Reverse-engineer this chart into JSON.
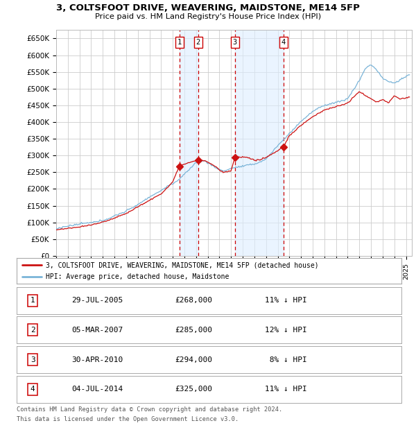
{
  "title": "3, COLTSFOOT DRIVE, WEAVERING, MAIDSTONE, ME14 5FP",
  "subtitle": "Price paid vs. HM Land Registry's House Price Index (HPI)",
  "ylabel_ticks": [
    "£0",
    "£50K",
    "£100K",
    "£150K",
    "£200K",
    "£250K",
    "£300K",
    "£350K",
    "£400K",
    "£450K",
    "£500K",
    "£550K",
    "£600K",
    "£650K"
  ],
  "ytick_values": [
    0,
    50000,
    100000,
    150000,
    200000,
    250000,
    300000,
    350000,
    400000,
    450000,
    500000,
    550000,
    600000,
    650000
  ],
  "hpi_color": "#7ab4d8",
  "price_color": "#cc1111",
  "shade_color": "#ddeeff",
  "sales": [
    {
      "num": 1,
      "date_num": 2005.57,
      "price": 268000,
      "label": "29-JUL-2005",
      "pct": "11%"
    },
    {
      "num": 2,
      "date_num": 2007.17,
      "price": 285000,
      "label": "05-MAR-2007",
      "pct": "12%"
    },
    {
      "num": 3,
      "date_num": 2010.33,
      "price": 294000,
      "label": "30-APR-2010",
      "pct": "8%"
    },
    {
      "num": 4,
      "date_num": 2014.5,
      "price": 325000,
      "label": "04-JUL-2014",
      "pct": "11%"
    }
  ],
  "xmin": 1995.0,
  "xmax": 2025.5,
  "legend_address": "3, COLTSFOOT DRIVE, WEAVERING, MAIDSTONE, ME14 5FP (detached house)",
  "legend_hpi": "HPI: Average price, detached house, Maidstone",
  "footer1": "Contains HM Land Registry data © Crown copyright and database right 2024.",
  "footer2": "This data is licensed under the Open Government Licence v3.0.",
  "table_entries": [
    {
      "num": "1",
      "date": "29-JUL-2005",
      "price": "£268,000",
      "pct": "11% ↓ HPI"
    },
    {
      "num": "2",
      "date": "05-MAR-2007",
      "price": "£285,000",
      "pct": "12% ↓ HPI"
    },
    {
      "num": "3",
      "date": "30-APR-2010",
      "price": "£294,000",
      "pct": " 8% ↓ HPI"
    },
    {
      "num": "4",
      "date": "04-JUL-2014",
      "price": "£325,000",
      "pct": "11% ↓ HPI"
    }
  ]
}
